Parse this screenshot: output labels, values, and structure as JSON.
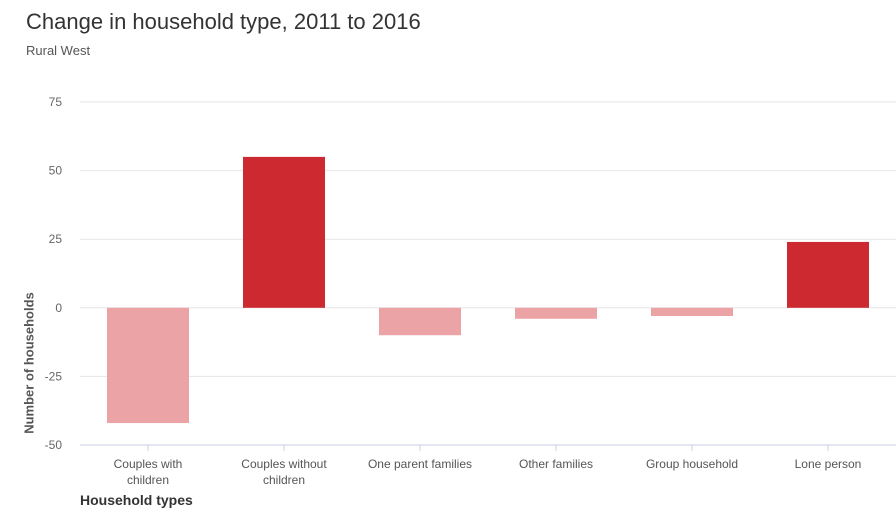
{
  "chart_data": {
    "type": "bar",
    "title": "Change in household type, 2011 to 2016",
    "subtitle": "Rural West",
    "xlabel": "Household types",
    "ylabel": "Number of households",
    "categories": [
      [
        "Couples with",
        "children"
      ],
      [
        "Couples without",
        "children"
      ],
      [
        "One parent families"
      ],
      [
        "Other families"
      ],
      [
        "Group household"
      ],
      [
        "Lone person"
      ]
    ],
    "values": [
      -42,
      55,
      -10,
      -4,
      -3,
      24
    ],
    "ylim": [
      -50,
      75
    ],
    "yticks": [
      75,
      50,
      25,
      0,
      -25,
      -50
    ],
    "colors": {
      "positive": "#cc2a30",
      "negative": "#eba3a6"
    },
    "grid": true
  }
}
